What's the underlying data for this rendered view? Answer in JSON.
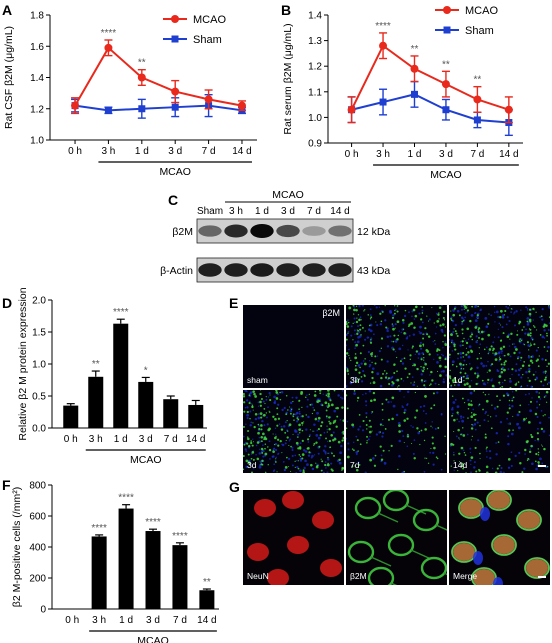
{
  "colors": {
    "mcao": "#e8291c",
    "sham": "#1f3fd1",
    "bar": "#000000",
    "star": "#555555"
  },
  "panels": {
    "A": {
      "letter": "A",
      "type": "line",
      "ylabel": "Rat CSF β2M (μg/mL)",
      "ylim": [
        1.0,
        1.8
      ],
      "yticks": [
        "1.0",
        "1.2",
        "1.4",
        "1.6",
        "1.8"
      ],
      "categories": [
        "0 h",
        "3 h",
        "1 d",
        "3 d",
        "7 d",
        "14 d"
      ],
      "group_label": "MCAO",
      "legend": [
        "MCAO",
        "Sham"
      ],
      "series": [
        {
          "name": "MCAO",
          "values": [
            1.22,
            1.59,
            1.4,
            1.31,
            1.26,
            1.22
          ],
          "errors": [
            0.05,
            0.05,
            0.05,
            0.07,
            0.06,
            0.03
          ]
        },
        {
          "name": "Sham",
          "values": [
            1.22,
            1.19,
            1.2,
            1.21,
            1.22,
            1.19
          ],
          "errors": [
            0.04,
            0.02,
            0.06,
            0.06,
            0.07,
            0.02
          ]
        }
      ],
      "significance": [
        "",
        "****",
        "**",
        "",
        "",
        ""
      ]
    },
    "B": {
      "letter": "B",
      "type": "line",
      "ylabel": "Rat serum β2M (μg/mL)",
      "ylim": [
        0.9,
        1.4
      ],
      "yticks": [
        "0.9",
        "1.0",
        "1.1",
        "1.2",
        "1.3",
        "1.4"
      ],
      "categories": [
        "0 h",
        "3 h",
        "1 d",
        "3 d",
        "7 d",
        "14 d"
      ],
      "group_label": "MCAO",
      "legend": [
        "MCAO",
        "Sham"
      ],
      "series": [
        {
          "name": "MCAO",
          "values": [
            1.03,
            1.28,
            1.19,
            1.13,
            1.07,
            1.03
          ],
          "errors": [
            0.05,
            0.05,
            0.05,
            0.05,
            0.05,
            0.05
          ]
        },
        {
          "name": "Sham",
          "values": [
            1.03,
            1.06,
            1.09,
            1.03,
            0.99,
            0.98
          ],
          "errors": [
            0.05,
            0.05,
            0.05,
            0.04,
            0.03,
            0.05
          ]
        }
      ],
      "significance": [
        "",
        "****",
        "**",
        "**",
        "**",
        ""
      ]
    },
    "C": {
      "letter": "C",
      "group_label": "MCAO",
      "lanes": [
        "Sham",
        "3 h",
        "1 d",
        "3 d",
        "7 d",
        "14 d"
      ],
      "rows": [
        {
          "label": "β2M",
          "size": "12 kDa",
          "intensity": [
            0.55,
            0.85,
            1.0,
            0.7,
            0.3,
            0.5
          ]
        },
        {
          "label": "β-Actin",
          "size": "43 kDa",
          "intensity": [
            0.9,
            0.9,
            0.92,
            0.9,
            0.9,
            0.9
          ]
        }
      ]
    },
    "D": {
      "letter": "D",
      "type": "bar",
      "ylabel": "Relative β2 M protein expression",
      "ylim": [
        0.0,
        2.0
      ],
      "yticks": [
        "0.0",
        "0.5",
        "1.0",
        "1.5",
        "2.0"
      ],
      "categories": [
        "0 h",
        "3 h",
        "1 d",
        "3 d",
        "7 d",
        "14 d"
      ],
      "group_label": "MCAO",
      "values": [
        0.35,
        0.8,
        1.63,
        0.72,
        0.45,
        0.36
      ],
      "errors": [
        0.03,
        0.09,
        0.07,
        0.07,
        0.05,
        0.07
      ],
      "significance": [
        "",
        "**",
        "****",
        "*",
        "",
        ""
      ]
    },
    "E": {
      "letter": "E",
      "marker": "β2M",
      "tiles": [
        "sham",
        "3h",
        "1d",
        "3d",
        "7d",
        "14d"
      ],
      "density": [
        0.0,
        0.8,
        0.9,
        1.0,
        0.35,
        0.5
      ]
    },
    "F": {
      "letter": "F",
      "type": "bar",
      "ylabel": "β2 M-positive cells (/mm²)",
      "ylim": [
        0,
        800
      ],
      "yticks": [
        "0",
        "200",
        "400",
        "600",
        "800"
      ],
      "categories": [
        "0 h",
        "3 h",
        "1 d",
        "3 d",
        "7 d",
        "14 d"
      ],
      "group_label": "MCAO",
      "values": [
        0,
        468,
        648,
        503,
        412,
        121
      ],
      "errors": [
        0,
        10,
        25,
        12,
        15,
        8
      ],
      "significance": [
        "",
        "****",
        "****",
        "****",
        "****",
        "**"
      ]
    },
    "G": {
      "letter": "G",
      "tiles": [
        "NeuN",
        "β2M",
        "Merge"
      ]
    }
  }
}
